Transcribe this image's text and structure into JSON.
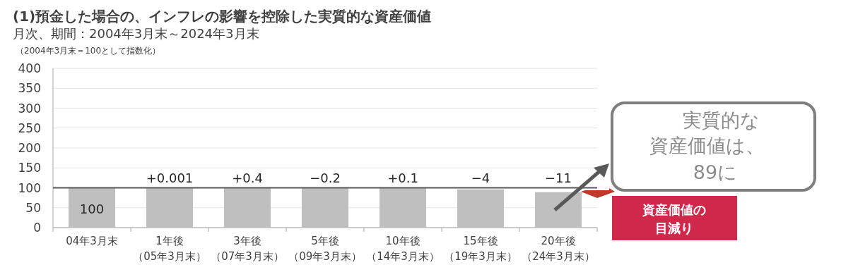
{
  "chart_data": {
    "type": "bar",
    "title": "(1)預金した場合の、インフレの影響を控除した実質的な資産価値",
    "subtitle": "月次、期間：2004年3月末～2024年3月末",
    "ylabel": "（2004年3月末＝100として指数化）",
    "categories": [
      "04年3月末",
      "1年後（05年3月末）",
      "3年後（07年3月末）",
      "5年後（09年3月末）",
      "10年後（14年3月末）",
      "15年後（19年3月末）",
      "20年後（24年3月末）"
    ],
    "values": [
      100,
      100,
      100,
      100,
      100,
      96,
      89
    ],
    "color": "#bfbfbf",
    "ylim": [
      0,
      400
    ],
    "yticks": [
      0,
      50,
      100,
      150,
      200,
      250,
      300,
      350,
      400
    ],
    "grid": "y",
    "ref_lines": [
      {
        "axis": "y",
        "value": 100,
        "color": "#595959"
      }
    ],
    "annotations": [
      {
        "text": "100",
        "x": "04年3月末",
        "y": 100
      },
      {
        "text": "+0.001",
        "x": "1年後（05年3月末）",
        "y": 100
      },
      {
        "text": "+0.4",
        "x": "3年後（07年3月末）",
        "y": 100
      },
      {
        "text": "−0.2",
        "x": "5年後（09年3月末）",
        "y": 100
      },
      {
        "text": "+0.1",
        "x": "10年後（14年3月末）",
        "y": 100
      },
      {
        "text": "−4",
        "x": "15年後（19年3月末）",
        "y": 96
      },
      {
        "text": "−11",
        "x": "20年後（24年3月末）",
        "y": 89
      },
      "実質的な",
      "資産価値は、",
      "89に",
      "資産価値の",
      "目減り"
    ]
  }
}
